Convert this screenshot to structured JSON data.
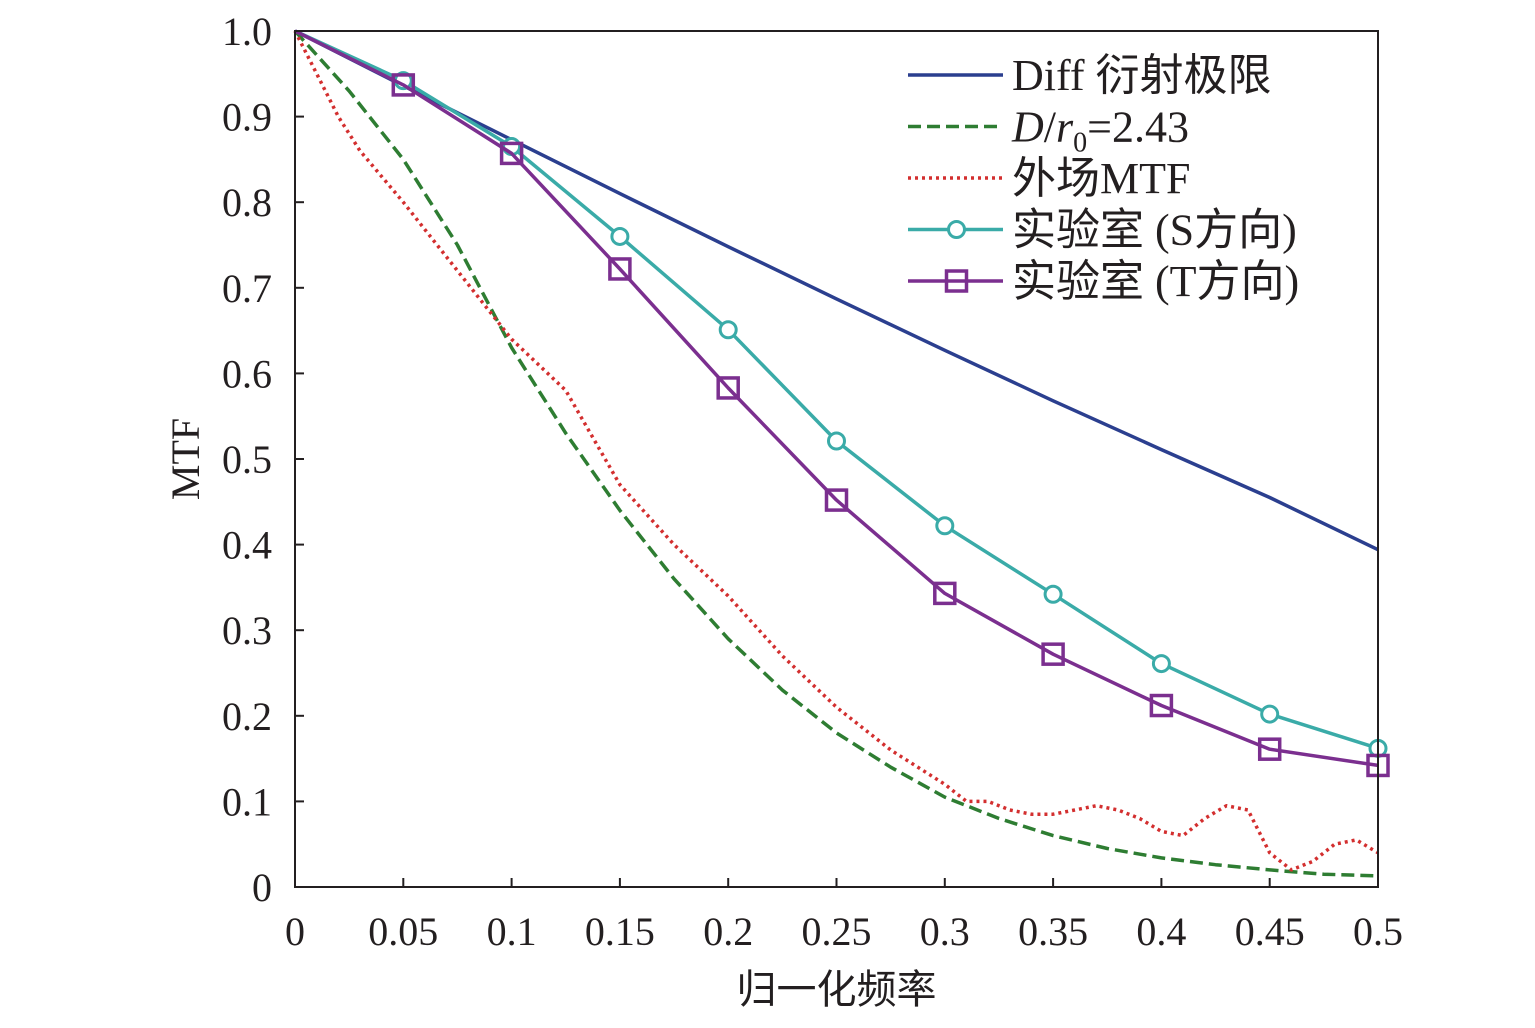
{
  "chart_data": {
    "type": "line",
    "title": "",
    "xlabel": "归一化频率",
    "ylabel": "MTF",
    "xlim": [
      0,
      0.5
    ],
    "ylim": [
      0,
      1.0
    ],
    "x_ticks": [
      "0",
      "0.05",
      "0.1",
      "0.15",
      "0.2",
      "0.25",
      "0.3",
      "0.35",
      "0.4",
      "0.45",
      "0.5"
    ],
    "y_ticks": [
      "0",
      "0.1",
      "0.2",
      "0.3",
      "0.4",
      "0.5",
      "0.6",
      "0.7",
      "0.8",
      "0.9",
      "1.0"
    ],
    "grid": false,
    "legend_position": "top-right",
    "series": [
      {
        "name": "Diff 衍射极限",
        "color": "#2b3f8f",
        "dash": "solid",
        "marker": "none",
        "x": [
          0,
          0.05,
          0.1,
          0.15,
          0.2,
          0.25,
          0.3,
          0.35,
          0.4,
          0.45,
          0.5
        ],
        "y": [
          1.0,
          0.936,
          0.873,
          0.81,
          0.748,
          0.687,
          0.627,
          0.568,
          0.511,
          0.455,
          0.394
        ]
      },
      {
        "name": "D/r0=2.43",
        "legend_italic_prefix": "D",
        "legend_sep": "/",
        "legend_italic_var": "r",
        "legend_subscript": "0",
        "legend_suffix": "=2.43",
        "color": "#2e7d32",
        "dash": "dashed",
        "marker": "none",
        "x": [
          0,
          0.025,
          0.05,
          0.075,
          0.1,
          0.125,
          0.15,
          0.175,
          0.2,
          0.225,
          0.25,
          0.275,
          0.3,
          0.325,
          0.35,
          0.375,
          0.4,
          0.425,
          0.45,
          0.475,
          0.5
        ],
        "y": [
          1.0,
          0.93,
          0.85,
          0.75,
          0.63,
          0.53,
          0.44,
          0.36,
          0.29,
          0.23,
          0.18,
          0.14,
          0.105,
          0.08,
          0.06,
          0.045,
          0.034,
          0.026,
          0.02,
          0.015,
          0.013
        ]
      },
      {
        "name": "外场MTF",
        "color": "#d32f2f",
        "dash": "dotted",
        "marker": "none",
        "x": [
          0,
          0.01,
          0.02,
          0.03,
          0.05,
          0.075,
          0.1,
          0.125,
          0.15,
          0.175,
          0.2,
          0.225,
          0.25,
          0.275,
          0.3,
          0.31,
          0.32,
          0.33,
          0.34,
          0.35,
          0.36,
          0.37,
          0.38,
          0.39,
          0.4,
          0.41,
          0.42,
          0.43,
          0.44,
          0.45,
          0.46,
          0.47,
          0.48,
          0.49,
          0.5
        ],
        "y": [
          1.0,
          0.95,
          0.9,
          0.86,
          0.8,
          0.72,
          0.64,
          0.58,
          0.47,
          0.4,
          0.34,
          0.27,
          0.21,
          0.16,
          0.12,
          0.1,
          0.1,
          0.09,
          0.085,
          0.085,
          0.09,
          0.095,
          0.09,
          0.08,
          0.065,
          0.06,
          0.08,
          0.095,
          0.09,
          0.04,
          0.02,
          0.03,
          0.05,
          0.055,
          0.04
        ]
      },
      {
        "name": "实验室 (S方向)",
        "color": "#3aaba8",
        "dash": "solid",
        "marker": "circle",
        "x": [
          0,
          0.05,
          0.1,
          0.15,
          0.2,
          0.25,
          0.3,
          0.35,
          0.4,
          0.45,
          0.5
        ],
        "y": [
          1.0,
          0.942,
          0.865,
          0.76,
          0.651,
          0.521,
          0.422,
          0.342,
          0.261,
          0.202,
          0.162
        ]
      },
      {
        "name": "实验室 (T方向)",
        "color": "#7b2f8f",
        "dash": "solid",
        "marker": "square",
        "x": [
          0,
          0.05,
          0.1,
          0.15,
          0.2,
          0.25,
          0.3,
          0.35,
          0.4,
          0.45,
          0.5
        ],
        "y": [
          1.0,
          0.937,
          0.857,
          0.722,
          0.583,
          0.452,
          0.343,
          0.272,
          0.212,
          0.161,
          0.142
        ]
      }
    ]
  }
}
